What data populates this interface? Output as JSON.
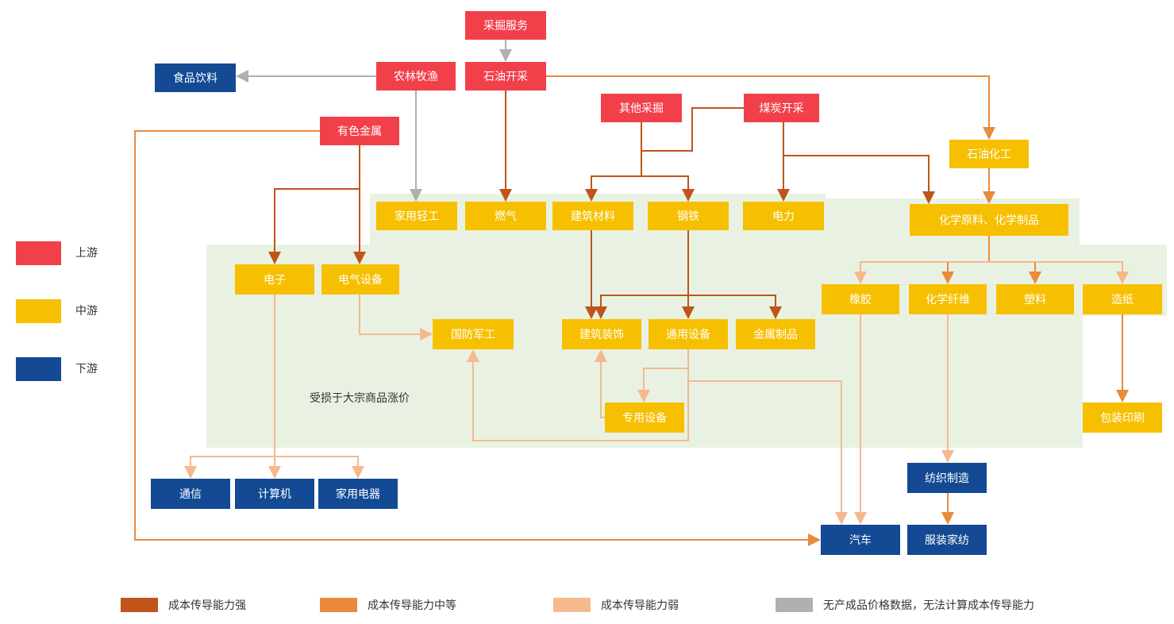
{
  "nodes": [
    {
      "label": "采掘服务"
    },
    {
      "label": "石油开采"
    },
    {
      "label": "农林牧渔"
    },
    {
      "label": "食品饮料"
    },
    {
      "label": "其他采掘"
    },
    {
      "label": "煤炭开采"
    },
    {
      "label": "有色金属"
    },
    {
      "label": "石油化工"
    },
    {
      "label": "家用轻工"
    },
    {
      "label": "燃气"
    },
    {
      "label": "建筑材料"
    },
    {
      "label": "钢铁"
    },
    {
      "label": "电力"
    },
    {
      "label": "化学原料、化学制品"
    },
    {
      "label": "电子"
    },
    {
      "label": "电气设备"
    },
    {
      "label": "橡胶"
    },
    {
      "label": "化学纤维"
    },
    {
      "label": "塑料"
    },
    {
      "label": "造纸"
    },
    {
      "label": "国防军工"
    },
    {
      "label": "建筑装饰"
    },
    {
      "label": "通用设备"
    },
    {
      "label": "金属制品"
    },
    {
      "label": "专用设备"
    },
    {
      "label": "包装印刷"
    },
    {
      "label": "纺织制造"
    },
    {
      "label": "通信"
    },
    {
      "label": "计算机"
    },
    {
      "label": "家用电器"
    },
    {
      "label": "汽车"
    },
    {
      "label": "服装家纺"
    }
  ],
  "tier_legend": [
    "上游",
    "中游",
    "下游"
  ],
  "note": "受损于大宗商品涨价",
  "line_legend": [
    "成本传导能力强",
    "成本传导能力中等",
    "成本传导能力弱",
    "无产成品价格数据，无法计算成本传导能力"
  ]
}
